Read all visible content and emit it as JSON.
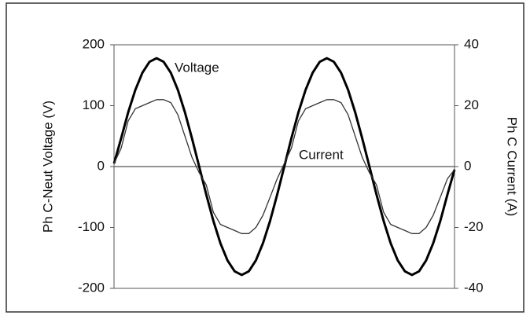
{
  "chart_data": {
    "type": "line",
    "y_label": "Ph C-Neut Voltage (V)",
    "y2_label": "Ph C Current (A)",
    "ylim": [
      -200,
      200
    ],
    "yticks": [
      -200,
      -100,
      0,
      100,
      200
    ],
    "y2lim": [
      -40,
      40
    ],
    "y2ticks": [
      -40,
      -20,
      0,
      20,
      40
    ],
    "series": [
      {
        "name": "Voltage",
        "color": "#000000",
        "axis": "y",
        "values": [
          5,
          46,
          89,
          126,
          154,
          172,
          178,
          172,
          154,
          126,
          89,
          46,
          0,
          -46,
          -89,
          -126,
          -154,
          -172,
          -178,
          -172,
          -154,
          -126,
          -89,
          -46,
          0,
          46,
          89,
          126,
          154,
          172,
          178,
          172,
          154,
          126,
          89,
          46,
          0,
          -46,
          -89,
          -126,
          -154,
          -172,
          -178,
          -172,
          -154,
          -126,
          -89,
          -46,
          -5
        ]
      },
      {
        "name": "Current",
        "color": "#333333",
        "axis": "y2",
        "values": [
          1,
          6,
          15,
          19,
          20,
          21,
          22,
          22,
          21,
          17,
          10,
          3,
          -2,
          -6,
          -15,
          -19,
          -20,
          -21,
          -22,
          -22,
          -20,
          -16,
          -10,
          -4,
          1,
          6,
          15,
          19,
          20,
          21,
          22,
          22,
          21,
          17,
          10,
          3,
          -2,
          -6,
          -15,
          -19,
          -20,
          -21,
          -22,
          -22,
          -20,
          -16,
          -10,
          -4,
          -1
        ]
      }
    ]
  }
}
